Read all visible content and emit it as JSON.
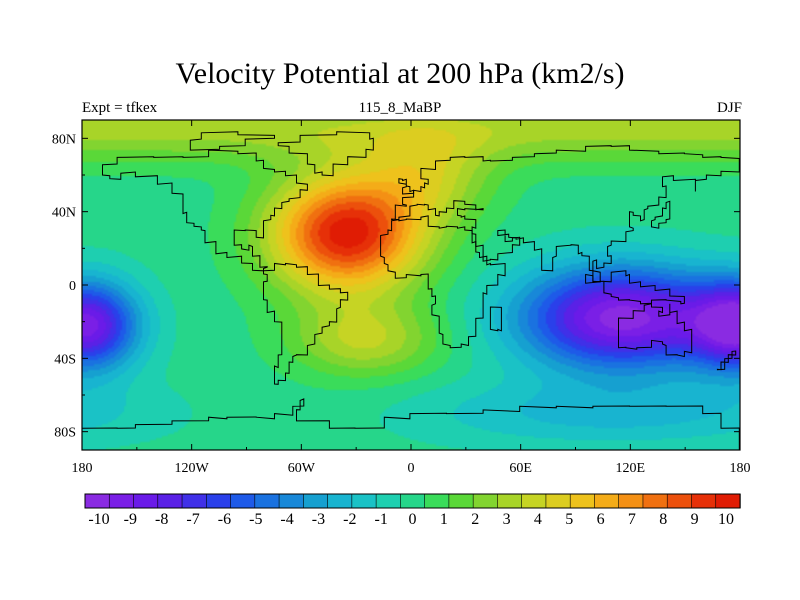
{
  "header": {
    "title": "Velocity Potential at 200 hPa (km2/s)",
    "left_label": "Expt = tfkex",
    "center_label": "115_8_MaBP",
    "right_label": "DJF"
  },
  "chart_data": {
    "type": "heatmap",
    "title": "Velocity Potential at 200 hPa (km2/s)",
    "units": "km2/s",
    "x_ticks": [
      "180",
      "120W",
      "60W",
      "0",
      "60E",
      "120E",
      "180"
    ],
    "x_tick_values": [
      -180,
      -120,
      -60,
      0,
      60,
      120,
      180
    ],
    "y_ticks": [
      "80N",
      "40N",
      "0",
      "40S",
      "80S"
    ],
    "y_tick_values": [
      80,
      40,
      0,
      -40,
      -80
    ],
    "xlim": [
      -180,
      180
    ],
    "ylim": [
      -90,
      90
    ],
    "colorbar": {
      "labels": [
        "-10",
        "-9",
        "-8",
        "-7",
        "-6",
        "-5",
        "-4",
        "-3",
        "-2",
        "-1",
        "0",
        "1",
        "2",
        "3",
        "4",
        "5",
        "6",
        "7",
        "8",
        "9",
        "10"
      ],
      "min": -10.5,
      "max": 10.5,
      "colors": [
        "#8a2be2",
        "#7a1fe6",
        "#6a1be8",
        "#5a21e6",
        "#4030e8",
        "#2a40ea",
        "#1e5ae8",
        "#1a72e0",
        "#1888d8",
        "#16a0d0",
        "#18b4d0",
        "#1ac2c6",
        "#1ecfb0",
        "#26d68a",
        "#3adc5a",
        "#5ad838",
        "#82d430",
        "#a8d428",
        "#c6d424",
        "#dccd20",
        "#eec21c",
        "#f4ac18",
        "#f49014",
        "#f07010",
        "#ec500c",
        "#e63008",
        "#e01c04"
      ],
      "orientation": "horizontal"
    },
    "features": [
      {
        "label": "maximum",
        "lon": -35,
        "lat": 25,
        "value": 9.6
      },
      {
        "label": "minimum",
        "lon": 115,
        "lat": -18,
        "value": -9.6
      },
      {
        "label": "minimum",
        "lon": -175,
        "lat": -25,
        "value": -9.5
      }
    ]
  }
}
